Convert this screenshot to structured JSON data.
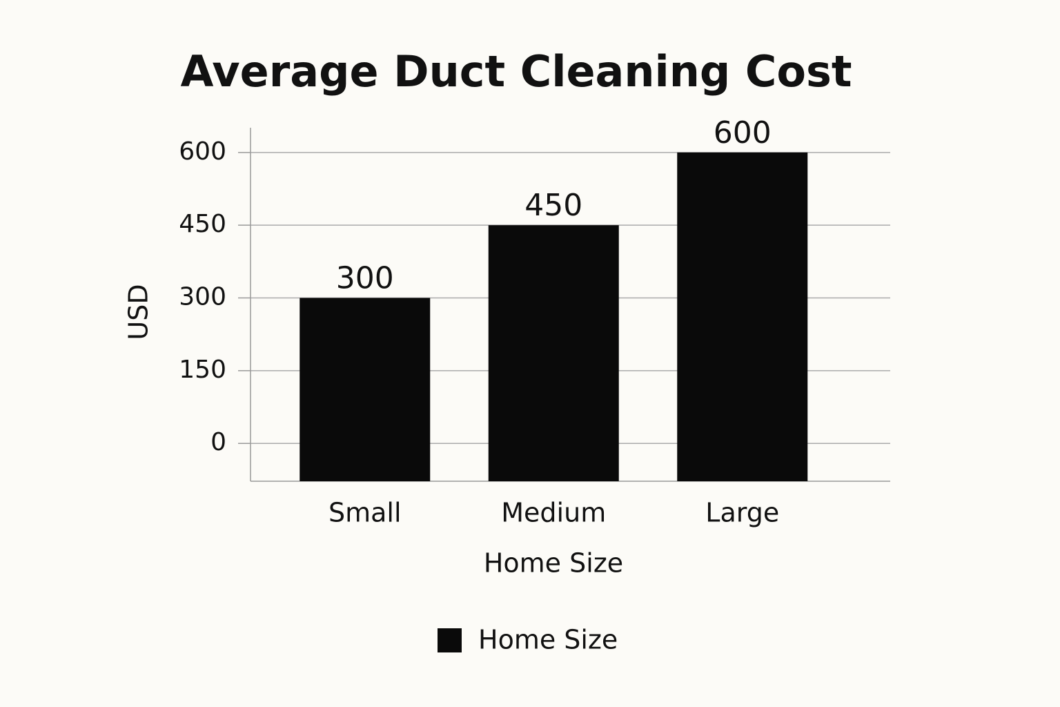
{
  "chart_data": {
    "type": "bar",
    "title": "Average Duct Cleaning Cost",
    "x_label": "Home Size",
    "y_label": "USD",
    "categories": [
      "Small",
      "Medium",
      "Large"
    ],
    "series": [
      {
        "name": "Home Size",
        "color": "#0a0a0a",
        "values": [
          300,
          450,
          600
        ]
      }
    ],
    "ylim": [
      -78,
      651
    ],
    "yticks": [
      0,
      150,
      300,
      450,
      600
    ],
    "grid": true,
    "legend": "bottom"
  }
}
